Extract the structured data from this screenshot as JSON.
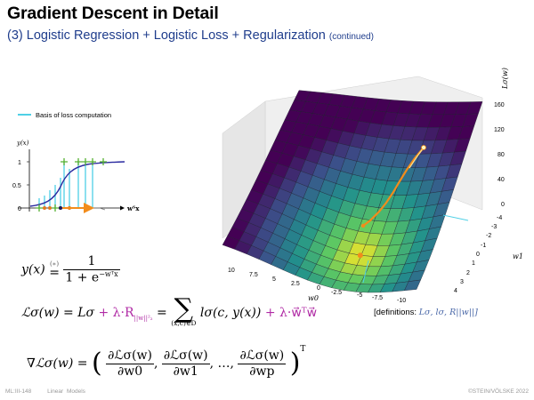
{
  "header": {
    "title": "Gradient Descent in Detail",
    "subtitle": "(3) Logistic Regression + Logistic Loss + Regularization",
    "subtitle_note": "(continued)"
  },
  "left_plot": {
    "legend_label": "Basis of loss computation",
    "legend_color": "#4fd0e6",
    "ylabel": "y(x)",
    "xlabel": "wᵀx",
    "yticks": [
      "1",
      "0.5",
      "0"
    ]
  },
  "surface_plot": {
    "zlabel": "Lσ(w)",
    "xlabel": "w0",
    "ylabel": "w1",
    "zticks": [
      "160",
      "120",
      "80",
      "40",
      "0"
    ],
    "xticks": [
      "10",
      "7.5",
      "5",
      "2.5",
      "0",
      "-2.5",
      "-5",
      "-7.5",
      "-10"
    ],
    "yticks": [
      "-4",
      "-3",
      "-2",
      "-1",
      "0",
      "1",
      "2",
      "3",
      "4"
    ],
    "colormap": [
      "#440154",
      "#3b528b",
      "#21918c",
      "#5ec962",
      "#fde725"
    ]
  },
  "equations": {
    "sigmoid_lhs": "y(x)",
    "sigmoid_eqsign": "(∗)",
    "sigmoid_num": "1",
    "sigmoid_den": "1 + e",
    "sigmoid_exp": "−wᵀx",
    "loss_lhs": "ℒσ(w)",
    "loss_rhs1": "Lσ",
    "loss_reg": "+ λ·R",
    "loss_reg_sub": "||w||²₂",
    "loss_sum_sub": "(x,c)∈D",
    "loss_term": "lσ(c, y(x))",
    "loss_reg2": "+ λ·w⃗ᵀw⃗",
    "grad_lhs": "∇ℒσ(w)",
    "grad_1_num": "∂ℒσ(w)",
    "grad_1_den": "∂w0",
    "grad_2_num": "∂ℒσ(w)",
    "grad_2_den": "∂w1",
    "grad_dots": "…",
    "grad_p_num": "∂ℒσ(w)",
    "grad_p_den": "∂wp",
    "grad_T": "T"
  },
  "definitions": {
    "label": "[definitions:",
    "items": "Lσ, lσ, R||w||]"
  },
  "footer": {
    "course": "ML:III-148",
    "topic": "Linear Models",
    "copyright": "©STEIN/VÖLSKE 2022"
  }
}
